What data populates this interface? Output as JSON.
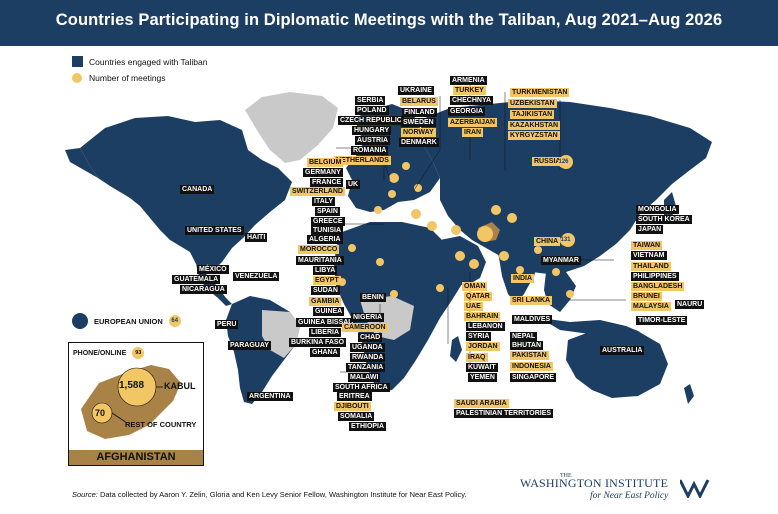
{
  "title": "Countries Participating in Diplomatic Meetings with the Taliban, Aug 2021–Aug 2026",
  "legend": {
    "engaged": "Countries engaged with Taliban",
    "meetings": "Number of meetings"
  },
  "colors": {
    "engaged": "#1d3e63",
    "not_engaged": "#c9c9c9",
    "meetings_dot": "#f2c665",
    "afghanistan": "#a88247"
  },
  "map_labels": [
    {
      "text": "SERBIA",
      "style": "dark"
    },
    {
      "text": "POLAND",
      "style": "dark"
    },
    {
      "text": "CZECH REPUBLIC",
      "style": "dark"
    },
    {
      "text": "HUNGARY",
      "style": "dark"
    },
    {
      "text": "AUSTRIA",
      "style": "dark"
    },
    {
      "text": "ROMANIA",
      "style": "dark"
    },
    {
      "text": "NETHERLANDS",
      "style": "gold"
    },
    {
      "text": "UKRAINE",
      "style": "dark"
    },
    {
      "text": "BELARUS",
      "style": "gold"
    },
    {
      "text": "FINLAND",
      "style": "dark"
    },
    {
      "text": "SWEDEN",
      "style": "dark"
    },
    {
      "text": "NORWAY",
      "style": "gold"
    },
    {
      "text": "DENMARK",
      "style": "dark"
    },
    {
      "text": "ARMENIA",
      "style": "dark"
    },
    {
      "text": "TURKEY",
      "style": "gold"
    },
    {
      "text": "CHECHNYA",
      "style": "dark"
    },
    {
      "text": "GEORGIA",
      "style": "dark"
    },
    {
      "text": "AZERBAIJAN",
      "style": "gold"
    },
    {
      "text": "IRAN",
      "style": "gold"
    },
    {
      "text": "TURKMENISTAN",
      "style": "gold"
    },
    {
      "text": "UZBEKISTAN",
      "style": "gold"
    },
    {
      "text": "TAJIKISTAN",
      "style": "gold"
    },
    {
      "text": "KAZAKHSTAN",
      "style": "gold"
    },
    {
      "text": "KYRGYZSTAN",
      "style": "gold"
    },
    {
      "text": "RUSSIA",
      "style": "gold"
    },
    {
      "text": "BELGIUM",
      "style": "gold"
    },
    {
      "text": "GERMANY",
      "style": "dark"
    },
    {
      "text": "FRANCE",
      "style": "dark"
    },
    {
      "text": "SWITZERLAND",
      "style": "gold"
    },
    {
      "text": "ITALY",
      "style": "dark"
    },
    {
      "text": "SPAIN",
      "style": "dark"
    },
    {
      "text": "GREECE",
      "style": "dark"
    },
    {
      "text": "TUNISIA",
      "style": "dark"
    },
    {
      "text": "ALGERIA",
      "style": "dark"
    },
    {
      "text": "MOROCCO",
      "style": "gold"
    },
    {
      "text": "MAURITANIA",
      "style": "dark"
    },
    {
      "text": "LIBYA",
      "style": "dark"
    },
    {
      "text": "EGYPT",
      "style": "gold"
    },
    {
      "text": "SUDAN",
      "style": "dark"
    },
    {
      "text": "GAMBIA",
      "style": "gold"
    },
    {
      "text": "GUINEA",
      "style": "dark"
    },
    {
      "text": "GUINEA BISSAU",
      "style": "dark"
    },
    {
      "text": "LIBERIA",
      "style": "dark"
    },
    {
      "text": "BURKINA FASO",
      "style": "dark"
    },
    {
      "text": "GHANA",
      "style": "dark"
    },
    {
      "text": "BENIN",
      "style": "dark"
    },
    {
      "text": "NIGERIA",
      "style": "dark"
    },
    {
      "text": "CAMEROON",
      "style": "gold"
    },
    {
      "text": "CHAD",
      "style": "dark"
    },
    {
      "text": "UGANDA",
      "style": "dark"
    },
    {
      "text": "RWANDA",
      "style": "dark"
    },
    {
      "text": "TANZANIA",
      "style": "dark"
    },
    {
      "text": "MALAWI",
      "style": "dark"
    },
    {
      "text": "SOUTH AFRICA",
      "style": "dark"
    },
    {
      "text": "ERITREA",
      "style": "dark"
    },
    {
      "text": "DJIBOUTI",
      "style": "gold"
    },
    {
      "text": "SOMALIA",
      "style": "dark"
    },
    {
      "text": "ETHIOPIA",
      "style": "dark"
    },
    {
      "text": "UK",
      "style": "dark"
    },
    {
      "text": "CANADA",
      "style": "dark"
    },
    {
      "text": "UNITED STATES",
      "style": "dark"
    },
    {
      "text": "HAITI",
      "style": "dark"
    },
    {
      "text": "MÉXICO",
      "style": "dark"
    },
    {
      "text": "VENEZUELA",
      "style": "dark"
    },
    {
      "text": "GUATEMALA",
      "style": "dark"
    },
    {
      "text": "NICARAGUA",
      "style": "dark"
    },
    {
      "text": "PERU",
      "style": "dark"
    },
    {
      "text": "PARAGUAY",
      "style": "dark"
    },
    {
      "text": "ARGENTINA",
      "style": "dark"
    },
    {
      "text": "MONGOLIA",
      "style": "dark"
    },
    {
      "text": "SOUTH KOREA",
      "style": "dark"
    },
    {
      "text": "JAPAN",
      "style": "dark"
    },
    {
      "text": "CHINA",
      "style": "gold"
    },
    {
      "text": "TAIWAN",
      "style": "gold"
    },
    {
      "text": "VIETNAM",
      "style": "dark"
    },
    {
      "text": "THAILAND",
      "style": "gold"
    },
    {
      "text": "PHILIPPINES",
      "style": "dark"
    },
    {
      "text": "BANGLADESH",
      "style": "gold"
    },
    {
      "text": "BRUNEI",
      "style": "gold"
    },
    {
      "text": "MALAYSIA",
      "style": "gold"
    },
    {
      "text": "NAURU",
      "style": "dark"
    },
    {
      "text": "TIMOR-LESTE",
      "style": "dark"
    },
    {
      "text": "MYANMAR",
      "style": "dark"
    },
    {
      "text": "INDIA",
      "style": "gold"
    },
    {
      "text": "SRI LANKA",
      "style": "gold"
    },
    {
      "text": "MALDIVES",
      "style": "dark"
    },
    {
      "text": "NEPAL",
      "style": "dark"
    },
    {
      "text": "BHUTAN",
      "style": "dark"
    },
    {
      "text": "PAKISTAN",
      "style": "gold"
    },
    {
      "text": "INDONESIA",
      "style": "gold"
    },
    {
      "text": "SINGAPORE",
      "style": "dark"
    },
    {
      "text": "OMAN",
      "style": "gold"
    },
    {
      "text": "QATAR",
      "style": "gold"
    },
    {
      "text": "UAE",
      "style": "gold"
    },
    {
      "text": "BAHRAIN",
      "style": "gold"
    },
    {
      "text": "LEBANON",
      "style": "dark"
    },
    {
      "text": "SYRIA",
      "style": "dark"
    },
    {
      "text": "JORDAN",
      "style": "gold"
    },
    {
      "text": "IRAQ",
      "style": "gold"
    },
    {
      "text": "KUWAIT",
      "style": "dark"
    },
    {
      "text": "YEMEN",
      "style": "dark"
    },
    {
      "text": "SAUDI ARABIA",
      "style": "gold"
    },
    {
      "text": "PALESTINIAN TERRITORIES",
      "style": "dark"
    },
    {
      "text": "AUSTRALIA",
      "style": "dark"
    }
  ],
  "meeting_counts": [
    {
      "country": "RUSSIA",
      "count": "126"
    },
    {
      "country": "CHINA",
      "count": "131"
    },
    {
      "country": "EUROPEAN UNION",
      "count": "64"
    }
  ],
  "eu": {
    "label": "EUROPEAN UNION",
    "count": "64"
  },
  "afghanistan_inset": {
    "title": "AFGHANISTAN",
    "phone_label": "PHONE/ONLINE",
    "phone_count": "93",
    "kabul_label": "KABUL",
    "kabul_count": "1,588",
    "rest_label": "REST OF COUNTRY",
    "rest_count": "70"
  },
  "source": {
    "prefix": "Source:",
    "text": "Data collected by Aaron Y. Zelin, Gloria and Ken Levy Senior Fellow, Washington Institute for Near East Policy."
  },
  "logo": {
    "the": "THE",
    "line1": "WASHINGTON INSTITUTE",
    "line2": "for Near East Policy"
  }
}
